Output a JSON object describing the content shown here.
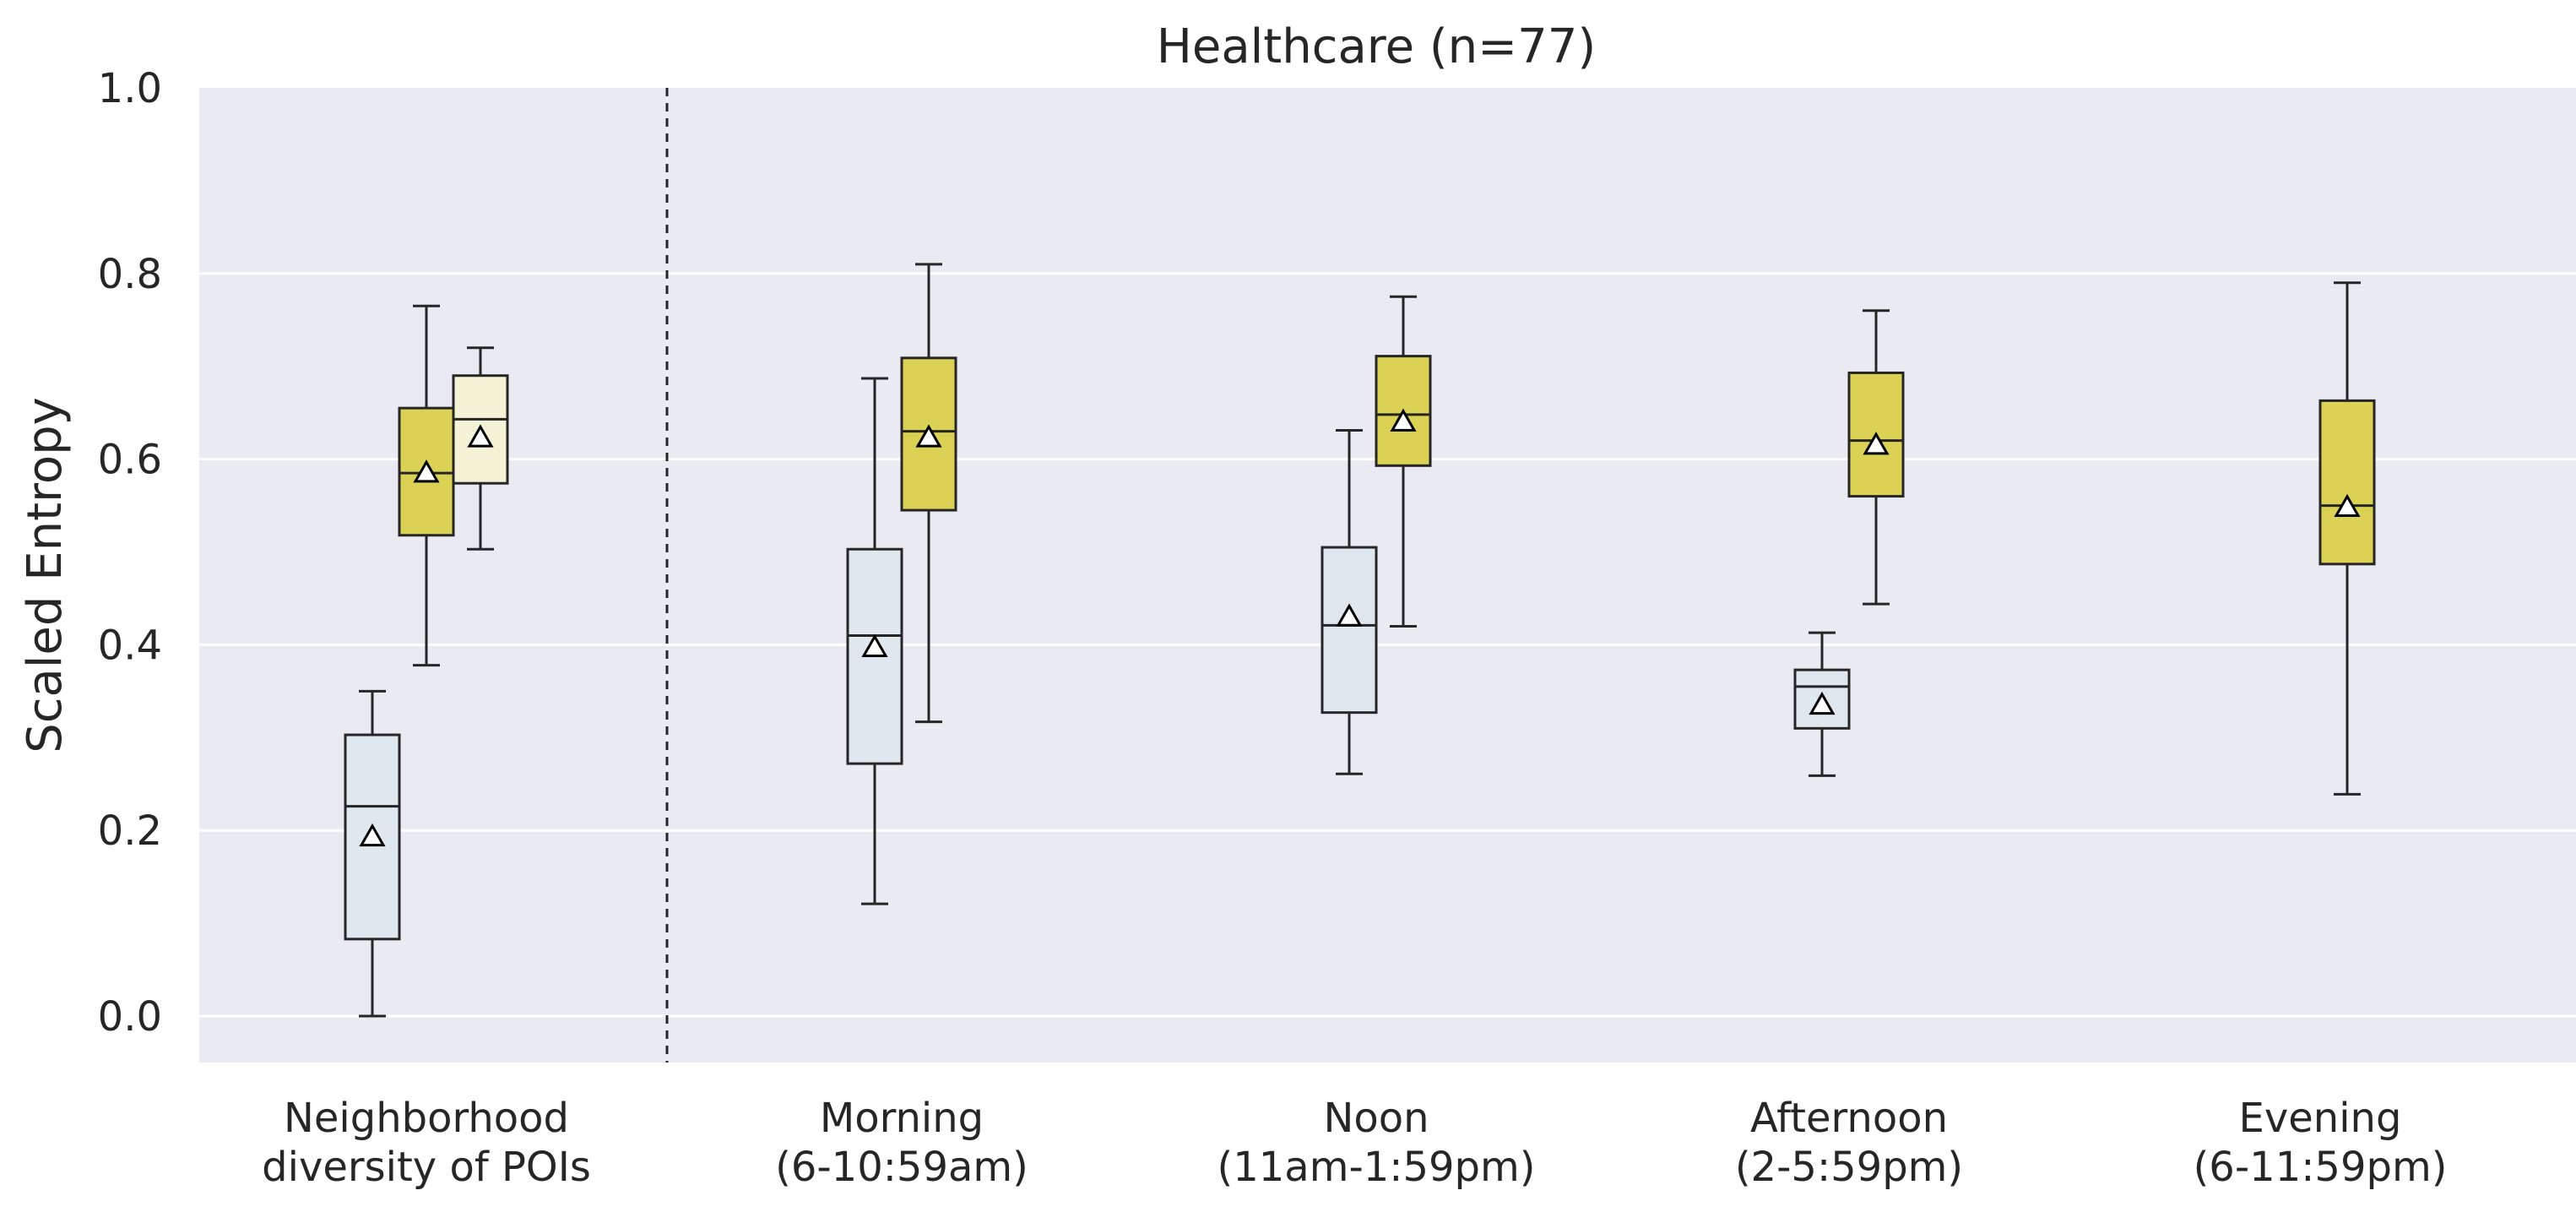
{
  "chart_data": {
    "type": "box",
    "title": "Healthcare (n=77)",
    "xlabel": "",
    "ylabel": "Scaled Entropy",
    "ylim": [
      -0.05,
      1.0
    ],
    "yticks": [
      "0.0",
      "0.2",
      "0.4",
      "0.6",
      "0.8",
      "1.0"
    ],
    "grid": true,
    "legend": "none",
    "categories": [
      [
        "Neighborhood",
        "diversity of POIs"
      ],
      [
        "Morning",
        "(6-10:59am)"
      ],
      [
        "Noon",
        "(11am-1:59pm)"
      ],
      [
        "Afternoon",
        "(2-5:59pm)"
      ],
      [
        "Evening",
        "(6-11:59pm)"
      ]
    ],
    "colors": {
      "background": "#eaeaf2",
      "grid": "#ffffff",
      "light_blue": "#dfe8ef",
      "yellow": "#dbd154",
      "light_yellow": "#f5f3d6",
      "line": "#262626"
    },
    "boxes": [
      {
        "category": 0,
        "slot": -1,
        "color": "light_blue",
        "whislo": 0.0,
        "q1": 0.083,
        "med": 0.226,
        "q3": 0.303,
        "whishi": 0.35,
        "mean": 0.193
      },
      {
        "category": 0,
        "slot": 0,
        "color": "yellow",
        "whislo": 0.378,
        "q1": 0.518,
        "med": 0.585,
        "q3": 0.655,
        "whishi": 0.765,
        "mean": 0.585
      },
      {
        "category": 0,
        "slot": 1,
        "color": "light_yellow",
        "whislo": 0.503,
        "q1": 0.574,
        "med": 0.643,
        "q3": 0.69,
        "whishi": 0.72,
        "mean": 0.623
      },
      {
        "category": 1,
        "slot": -0.5,
        "color": "light_blue",
        "whislo": 0.121,
        "q1": 0.272,
        "med": 0.41,
        "q3": 0.503,
        "whishi": 0.687,
        "mean": 0.397
      },
      {
        "category": 1,
        "slot": 0.5,
        "color": "yellow",
        "whislo": 0.317,
        "q1": 0.545,
        "med": 0.63,
        "q3": 0.709,
        "whishi": 0.81,
        "mean": 0.623
      },
      {
        "category": 2,
        "slot": -0.5,
        "color": "light_blue",
        "whislo": 0.261,
        "q1": 0.327,
        "med": 0.421,
        "q3": 0.505,
        "whishi": 0.631,
        "mean": 0.43
      },
      {
        "category": 2,
        "slot": 0.5,
        "color": "yellow",
        "whislo": 0.42,
        "q1": 0.593,
        "med": 0.648,
        "q3": 0.711,
        "whishi": 0.775,
        "mean": 0.64
      },
      {
        "category": 3,
        "slot": -0.5,
        "color": "light_blue",
        "whislo": 0.259,
        "q1": 0.31,
        "med": 0.355,
        "q3": 0.373,
        "whishi": 0.413,
        "mean": 0.335
      },
      {
        "category": 3,
        "slot": 0.5,
        "color": "yellow",
        "whislo": 0.444,
        "q1": 0.56,
        "med": 0.62,
        "q3": 0.693,
        "whishi": 0.76,
        "mean": 0.615
      },
      {
        "category": 4,
        "slot": 0.5,
        "color": "yellow",
        "whislo": 0.239,
        "q1": 0.487,
        "med": 0.55,
        "q3": 0.663,
        "whishi": 0.79,
        "mean": 0.548
      }
    ]
  }
}
